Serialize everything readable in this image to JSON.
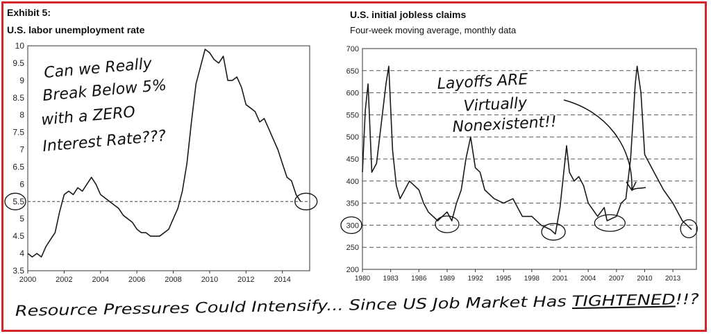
{
  "header": {
    "exhibit": "Exhibit 5:",
    "left_title": "U.S. labor unemployment rate",
    "right_title": "U.S. initial jobless claims",
    "right_subtitle": "Four-week moving average, monthly data"
  },
  "annotations": {
    "left_note": [
      "Can we Really",
      "Break Below 5%",
      "with a ZERO",
      "Interest Rate???"
    ],
    "right_note": [
      "Layoffs ARE",
      "Virtually",
      "Nonexistent!!"
    ],
    "bottom_note": "Resource Pressures Could Intensify... Since US Job Market Has TIGHTENED!!?",
    "bottom_note_parts": {
      "before": "Resource Pressures Could Intensify... Since US Job Market Has ",
      "emphasis": "TIGHTENED",
      "after": "!!?"
    }
  },
  "colors": {
    "frame": "#d4252a",
    "line": "#1a1a1a",
    "grid": "#555555",
    "ink": "#111111"
  },
  "chart_data": [
    {
      "type": "line",
      "title": "U.S. labor unemployment rate",
      "xlabel": "",
      "ylabel": "",
      "xlim": [
        2000,
        2015.5
      ],
      "ylim": [
        3.5,
        10
      ],
      "x_ticks": [
        "2000",
        "2002",
        "2004",
        "2006",
        "2008",
        "2010",
        "2012",
        "2014"
      ],
      "y_ticks": [
        "3.5",
        "4",
        "4.5",
        "5",
        "5.5",
        "6",
        "6.5",
        "7",
        "7.5",
        "8",
        "8.5",
        "9",
        "9.5",
        "10"
      ],
      "grid": false,
      "reference_line": 5.5,
      "highlight_tick": "5.5",
      "series": [
        {
          "x": [
            2000,
            2000.25,
            2000.5,
            2000.75,
            2001,
            2001.25,
            2001.5,
            2001.75,
            2002,
            2002.25,
            2002.5,
            2002.75,
            2003,
            2003.25,
            2003.5,
            2003.75,
            2004,
            2004.25,
            2004.5,
            2004.75,
            2005,
            2005.25,
            2005.5,
            2005.75,
            2006,
            2006.25,
            2006.5,
            2006.75,
            2007,
            2007.25,
            2007.5,
            2007.75,
            2008,
            2008.25,
            2008.5,
            2008.75,
            2009,
            2009.25,
            2009.5,
            2009.75,
            2010,
            2010.25,
            2010.5,
            2010.75,
            2011,
            2011.25,
            2011.5,
            2011.75,
            2012,
            2012.25,
            2012.5,
            2012.75,
            2013,
            2013.25,
            2013.5,
            2013.75,
            2014,
            2014.25,
            2014.5,
            2014.75,
            2015
          ],
          "values": [
            4.0,
            3.9,
            4.0,
            3.9,
            4.2,
            4.4,
            4.6,
            5.2,
            5.7,
            5.8,
            5.7,
            5.9,
            5.8,
            6.0,
            6.2,
            6.0,
            5.7,
            5.6,
            5.5,
            5.4,
            5.3,
            5.1,
            5.0,
            4.9,
            4.7,
            4.6,
            4.6,
            4.5,
            4.5,
            4.5,
            4.6,
            4.7,
            5.0,
            5.3,
            5.8,
            6.6,
            7.8,
            8.9,
            9.4,
            9.9,
            9.8,
            9.6,
            9.5,
            9.7,
            9.0,
            9.0,
            9.1,
            8.8,
            8.3,
            8.2,
            8.1,
            7.8,
            7.9,
            7.6,
            7.3,
            7.0,
            6.6,
            6.2,
            6.1,
            5.7,
            5.5
          ]
        }
      ]
    },
    {
      "type": "line",
      "title": "U.S. initial jobless claims",
      "subtitle": "Four-week moving average, monthly data",
      "xlabel": "",
      "ylabel": "",
      "xlim": [
        1980,
        2015.5
      ],
      "ylim": [
        200,
        700
      ],
      "x_ticks": [
        "1980",
        "1983",
        "1986",
        "1989",
        "1992",
        "1995",
        "1998",
        "2001",
        "2004",
        "2007",
        "2010",
        "2013"
      ],
      "y_ticks": [
        "200",
        "250",
        "300",
        "350",
        "400",
        "450",
        "500",
        "550",
        "600",
        "650",
        "700"
      ],
      "grid": "horizontal dashed",
      "highlight_tick": "300",
      "series": [
        {
          "x": [
            1980,
            1980.3,
            1980.6,
            1981,
            1981.5,
            1982,
            1982.5,
            1982.8,
            1983.2,
            1983.6,
            1984,
            1984.5,
            1985,
            1986,
            1986.5,
            1987,
            1988,
            1989,
            1989.5,
            1990,
            1990.5,
            1991,
            1991.5,
            1992,
            1992.5,
            1993,
            1994,
            1995,
            1996,
            1997,
            1998,
            1999,
            2000,
            2000.5,
            2001,
            2001.3,
            2001.7,
            2002,
            2002.5,
            2003,
            2003.5,
            2004,
            2005,
            2005.7,
            2006,
            2007,
            2007.5,
            2008,
            2008.5,
            2009,
            2009.2,
            2009.6,
            2010,
            2011,
            2012,
            2013,
            2013.5,
            2014,
            2014.5,
            2015
          ],
          "values": [
            420,
            560,
            620,
            420,
            440,
            530,
            620,
            660,
            470,
            390,
            360,
            380,
            400,
            380,
            350,
            330,
            310,
            330,
            310,
            350,
            380,
            450,
            500,
            430,
            420,
            380,
            360,
            350,
            360,
            320,
            320,
            300,
            290,
            280,
            340,
            400,
            480,
            420,
            400,
            410,
            390,
            350,
            320,
            340,
            310,
            320,
            350,
            360,
            450,
            620,
            660,
            600,
            460,
            420,
            380,
            350,
            330,
            310,
            300,
            290
          ]
        }
      ]
    }
  ]
}
